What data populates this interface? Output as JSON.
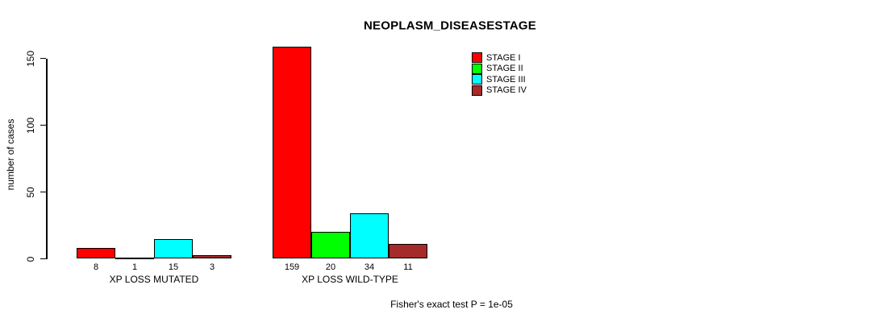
{
  "chart_data": {
    "type": "bar",
    "title": "NEOPLASM_DISEASESTAGE",
    "xlabel": "",
    "ylabel": "number of cases",
    "categories": [
      "XP LOSS MUTATED",
      "XP LOSS WILD-TYPE"
    ],
    "series": [
      {
        "name": "STAGE I",
        "color": "#FF0000",
        "values": [
          8,
          159
        ]
      },
      {
        "name": "STAGE II",
        "color": "#00FF00",
        "values": [
          1,
          20
        ]
      },
      {
        "name": "STAGE III",
        "color": "#00FFFF",
        "values": [
          15,
          34
        ]
      },
      {
        "name": "STAGE IV",
        "color": "#A52A2A",
        "values": [
          3,
          11
        ]
      }
    ],
    "y_ticks": [
      0,
      50,
      100,
      150
    ],
    "ylim": [
      0,
      159
    ],
    "grid": false,
    "legend_position": "top-right",
    "bar_value_labels_shown": true,
    "annotation": "Fisher's exact test P = 1e-05"
  },
  "colors": {
    "axis": "#000000",
    "text": "#000000",
    "background": "#FFFFFF"
  }
}
